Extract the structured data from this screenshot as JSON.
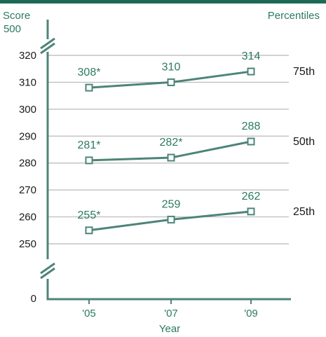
{
  "chart_data": {
    "type": "line",
    "ylabel": "Score",
    "xlabel": "Year",
    "legend_title": "Percentiles",
    "categories": [
      "'05",
      "'07",
      "'09"
    ],
    "y_ticks": [
      250,
      260,
      270,
      280,
      290,
      300,
      310,
      320
    ],
    "y_break_top_label": "500",
    "y_zero_label": "0",
    "ylim": [
      250,
      320
    ],
    "grid": true,
    "series": [
      {
        "name": "75th",
        "values": [
          308,
          310,
          314
        ],
        "labels": [
          "308*",
          "310",
          "314"
        ]
      },
      {
        "name": "50th",
        "values": [
          281,
          282,
          288
        ],
        "labels": [
          "281*",
          "282*",
          "288"
        ]
      },
      {
        "name": "25th",
        "values": [
          255,
          259,
          262
        ],
        "labels": [
          "255*",
          "259",
          "262"
        ]
      }
    ],
    "colors": {
      "line": "#4d8478",
      "label": "#2b7a63",
      "bar": "#1e6a57",
      "grid": "#b8b8b8"
    }
  }
}
